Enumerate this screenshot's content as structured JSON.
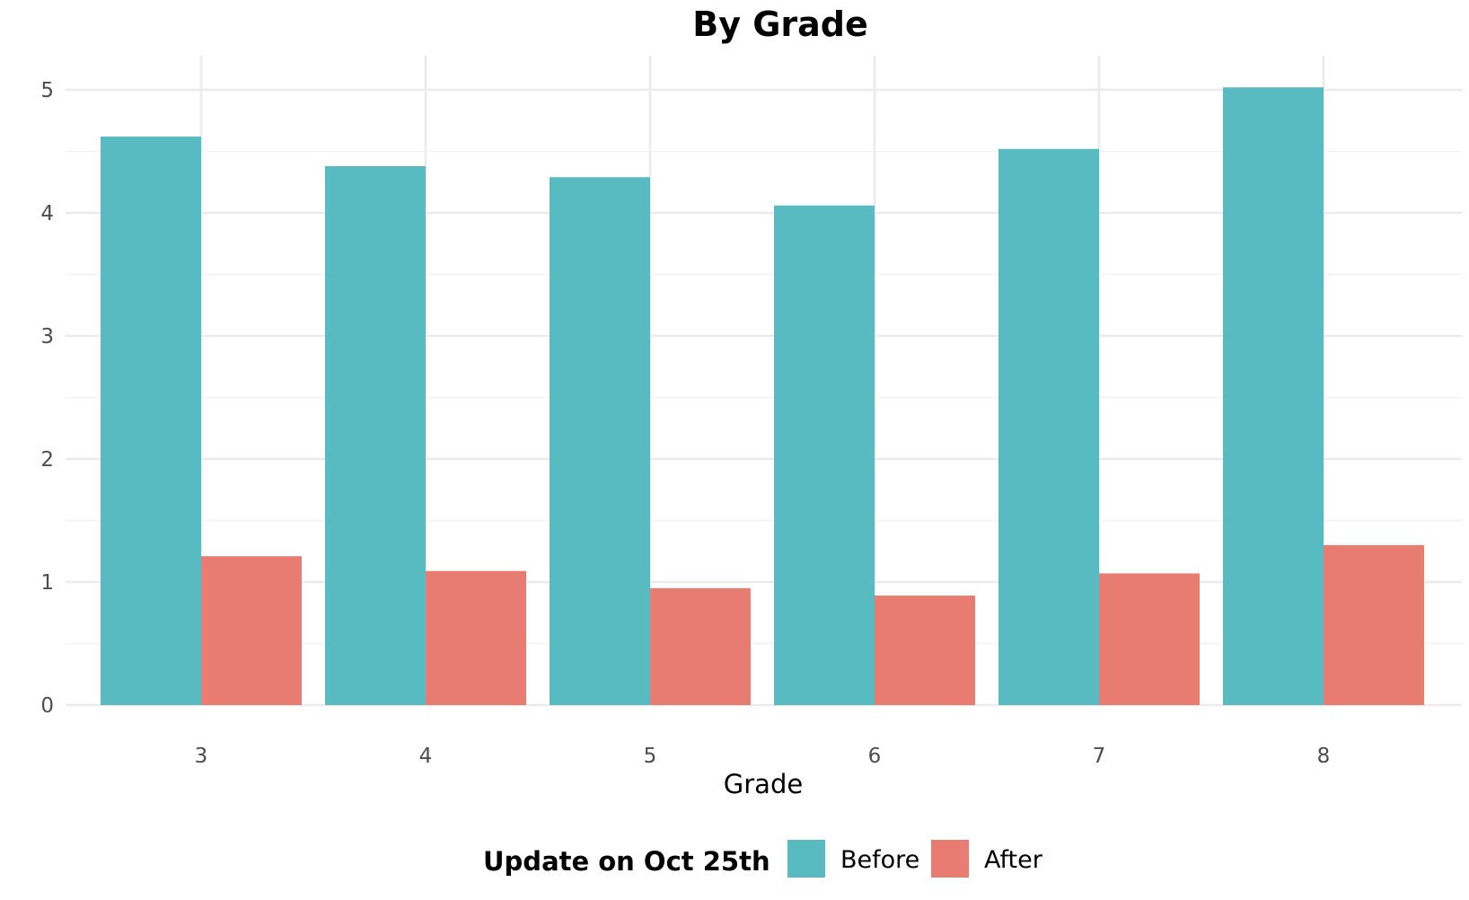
{
  "chart_data": {
    "type": "bar",
    "title": "By Grade",
    "xlabel": "Grade",
    "ylabel": "",
    "categories": [
      "3",
      "4",
      "5",
      "6",
      "7",
      "8"
    ],
    "series": [
      {
        "name": "Before",
        "values": [
          4.62,
          4.38,
          4.29,
          4.06,
          4.52,
          5.02
        ],
        "color": "#58bbc1"
      },
      {
        "name": "After",
        "values": [
          1.21,
          1.09,
          0.95,
          0.89,
          1.07,
          1.3
        ],
        "color": "#e87c72"
      }
    ],
    "ylim": [
      0,
      5.2
    ],
    "yticks": [
      0,
      1,
      2,
      3,
      4,
      5
    ],
    "legend": {
      "title": "Update on Oct 25th",
      "position": "bottom"
    },
    "grid": true
  }
}
